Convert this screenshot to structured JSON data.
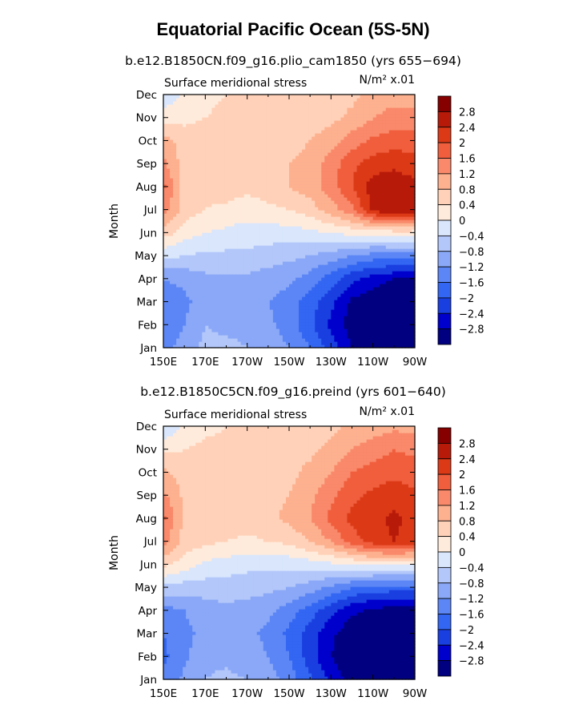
{
  "title": "Equatorial Pacific Ocean (5S-5N)",
  "colors": [
    "#000080",
    "#0000CD",
    "#1A3FE0",
    "#3366F2",
    "#5C86F5",
    "#8AA8F7",
    "#B3C7FA",
    "#D9E6FC",
    "#FFEBDC",
    "#FFD1B8",
    "#FDB18F",
    "#F9896A",
    "#F05E3D",
    "#DC3A17",
    "#B81A0A",
    "#860000"
  ],
  "colorbar_labels": [
    "2.8",
    "2.4",
    "2",
    "1.6",
    "1.2",
    "0.8",
    "0.4",
    "0",
    "−0.4",
    "−0.8",
    "−1.2",
    "−1.6",
    "−2",
    "−2.4",
    "−2.8"
  ],
  "chart_data": [
    {
      "type": "heatmap",
      "title": "b.e12.B1850CN.f09_g16.plio_cam1850 (yrs 655−694)",
      "variable": "Surface meridional stress",
      "units_label": "N/m² x.01",
      "ylabel": "Month",
      "xlabels": [
        "150E",
        "170E",
        "170W",
        "150W",
        "130W",
        "110W",
        "90W"
      ],
      "months": [
        "Jan",
        "Feb",
        "Mar",
        "Apr",
        "May",
        "Jun",
        "Jul",
        "Aug",
        "Sep",
        "Oct",
        "Nov",
        "Dec"
      ],
      "x": [
        150,
        160,
        170,
        180,
        190,
        200,
        210,
        220,
        230,
        240,
        250,
        260,
        270
      ],
      "levels": [
        -2.8,
        -2.4,
        -2.0,
        -1.6,
        -1.2,
        -0.8,
        -0.4,
        0,
        0.4,
        0.8,
        1.2,
        1.6,
        2.0,
        2.4,
        2.8
      ],
      "values": [
        [
          -1.4,
          -1.0,
          -0.7,
          -0.7,
          -0.8,
          -0.9,
          -1.2,
          -1.6,
          -2.2,
          -2.8,
          -3.1,
          -3.2,
          -3.2
        ],
        [
          -1.6,
          -1.2,
          -0.8,
          -0.9,
          -0.9,
          -1.1,
          -1.4,
          -1.9,
          -2.5,
          -3.0,
          -3.2,
          -3.2,
          -3.2
        ],
        [
          -1.5,
          -1.3,
          -1.0,
          -1.0,
          -1.0,
          -1.2,
          -1.4,
          -1.8,
          -2.3,
          -2.9,
          -3.1,
          -3.2,
          -3.2
        ],
        [
          -1.2,
          -1.1,
          -0.9,
          -0.9,
          -0.9,
          -1.0,
          -1.1,
          -1.4,
          -1.8,
          -2.3,
          -2.6,
          -2.8,
          -2.8
        ],
        [
          -0.3,
          -0.4,
          -0.5,
          -0.5,
          -0.5,
          -0.6,
          -0.7,
          -0.8,
          -1.0,
          -1.2,
          -1.4,
          -1.4,
          -1.4
        ],
        [
          0.6,
          0.2,
          0.0,
          -0.1,
          -0.2,
          -0.2,
          -0.2,
          -0.1,
          0.0,
          0.1,
          0.1,
          0.2,
          0.2
        ],
        [
          1.4,
          0.6,
          0.4,
          0.3,
          0.2,
          0.3,
          0.4,
          0.6,
          1.0,
          1.5,
          2.5,
          2.8,
          2.6
        ],
        [
          1.7,
          0.6,
          0.5,
          0.6,
          0.5,
          0.6,
          0.8,
          1.0,
          1.4,
          2.0,
          2.6,
          2.7,
          2.5
        ],
        [
          1.3,
          0.6,
          0.5,
          0.6,
          0.6,
          0.7,
          0.8,
          1.0,
          1.4,
          1.9,
          2.2,
          2.3,
          2.2
        ],
        [
          1.0,
          0.6,
          0.6,
          0.6,
          0.6,
          0.6,
          0.6,
          0.8,
          1.0,
          1.4,
          1.7,
          1.8,
          1.8
        ],
        [
          0.2,
          0.3,
          0.4,
          0.5,
          0.6,
          0.6,
          0.6,
          0.6,
          0.7,
          0.9,
          1.2,
          1.4,
          1.4
        ],
        [
          -0.3,
          0.1,
          0.3,
          0.4,
          0.5,
          0.5,
          0.5,
          0.6,
          0.6,
          0.7,
          0.9,
          1.0,
          1.0
        ]
      ]
    },
    {
      "type": "heatmap",
      "title": "b.e12.B1850C5CN.f09_g16.preind (yrs 601−640)",
      "variable": "Surface meridional stress",
      "units_label": "N/m² x.01",
      "ylabel": "Month",
      "xlabels": [
        "150E",
        "170E",
        "170W",
        "150W",
        "130W",
        "110W",
        "90W"
      ],
      "months": [
        "Jan",
        "Feb",
        "Mar",
        "Apr",
        "May",
        "Jun",
        "Jul",
        "Aug",
        "Sep",
        "Oct",
        "Nov",
        "Dec"
      ],
      "x": [
        150,
        160,
        170,
        180,
        190,
        200,
        210,
        220,
        230,
        240,
        250,
        260,
        270
      ],
      "levels": [
        -2.8,
        -2.4,
        -2.0,
        -1.6,
        -1.2,
        -0.8,
        -0.4,
        0,
        0.4,
        0.8,
        1.2,
        1.6,
        2.0,
        2.4,
        2.8
      ],
      "values": [
        [
          -1.5,
          -1.1,
          -0.8,
          -0.7,
          -0.8,
          -1.0,
          -1.4,
          -1.9,
          -2.5,
          -3.0,
          -3.2,
          -3.2,
          -3.2
        ],
        [
          -1.7,
          -1.3,
          -0.9,
          -0.9,
          -1.0,
          -1.2,
          -1.6,
          -2.2,
          -2.8,
          -3.1,
          -3.2,
          -3.2,
          -3.2
        ],
        [
          -1.6,
          -1.3,
          -1.1,
          -1.0,
          -1.1,
          -1.3,
          -1.7,
          -2.2,
          -2.7,
          -3.1,
          -3.2,
          -3.2,
          -3.2
        ],
        [
          -1.4,
          -1.2,
          -1.0,
          -0.9,
          -1.0,
          -1.1,
          -1.4,
          -1.8,
          -2.3,
          -2.7,
          -2.9,
          -3.0,
          -3.0
        ],
        [
          -0.5,
          -0.6,
          -0.6,
          -0.6,
          -0.6,
          -0.7,
          -0.8,
          -1.0,
          -1.3,
          -1.6,
          -1.8,
          -1.8,
          -1.8
        ],
        [
          0.5,
          0.2,
          -0.1,
          -0.2,
          -0.3,
          -0.3,
          -0.3,
          -0.2,
          -0.1,
          0.0,
          0.1,
          0.1,
          0.1
        ],
        [
          1.4,
          0.6,
          0.5,
          0.4,
          0.3,
          0.4,
          0.5,
          0.8,
          1.2,
          1.8,
          2.2,
          2.4,
          2.2
        ],
        [
          1.7,
          0.7,
          0.6,
          0.6,
          0.6,
          0.7,
          0.9,
          1.2,
          1.7,
          2.1,
          2.3,
          2.5,
          2.3
        ],
        [
          1.3,
          0.7,
          0.6,
          0.6,
          0.6,
          0.7,
          0.8,
          1.1,
          1.5,
          1.9,
          2.1,
          2.2,
          2.1
        ],
        [
          0.9,
          0.6,
          0.6,
          0.6,
          0.6,
          0.6,
          0.7,
          0.9,
          1.2,
          1.6,
          1.8,
          1.9,
          1.8
        ],
        [
          0.3,
          0.4,
          0.5,
          0.5,
          0.6,
          0.7,
          0.7,
          0.7,
          0.9,
          1.2,
          1.4,
          1.6,
          1.5
        ],
        [
          -0.4,
          0.1,
          0.3,
          0.4,
          0.5,
          0.6,
          0.6,
          0.7,
          0.7,
          0.9,
          1.0,
          1.1,
          1.1
        ]
      ]
    }
  ]
}
